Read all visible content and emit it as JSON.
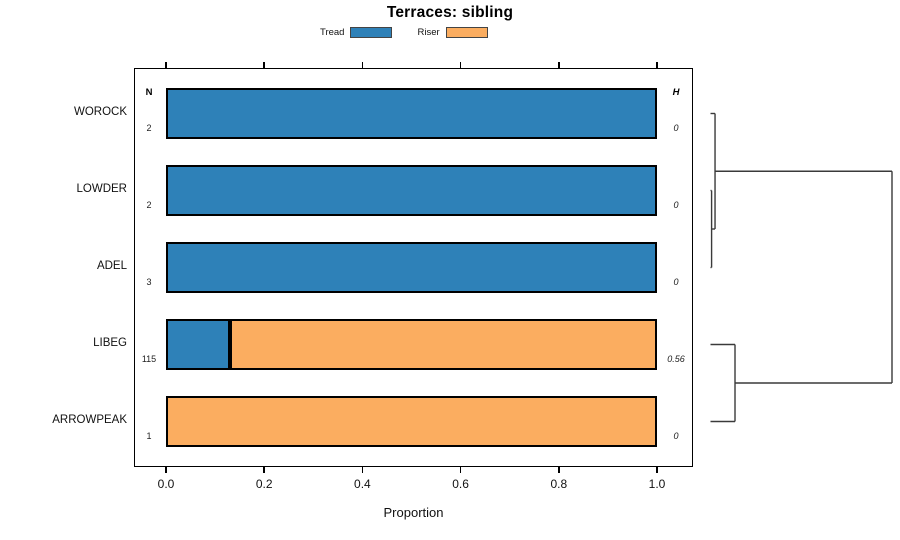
{
  "chart_data": {
    "type": "bar",
    "orientation": "horizontal-stacked",
    "title": "Terraces: sibling",
    "xlabel": "Proportion",
    "xlim": [
      0,
      1
    ],
    "x_ticks": [
      "0.0",
      "0.2",
      "0.4",
      "0.6",
      "0.8",
      "1.0"
    ],
    "grid": false,
    "legend_position": "top",
    "categories": [
      "WOROCK",
      "LOWDER",
      "ADEL",
      "LIBEG",
      "ARROWPEAK"
    ],
    "series": [
      {
        "name": "Tread",
        "color": "#2E81B8",
        "values": [
          1,
          1,
          1,
          0.13,
          0
        ]
      },
      {
        "name": "Riser",
        "color": "#FBAD60",
        "values": [
          0,
          0,
          0,
          0.87,
          1
        ]
      }
    ],
    "columns": {
      "n_header": "N",
      "h_header": "H",
      "n_values": [
        "2",
        "2",
        "3",
        "115",
        "1"
      ],
      "h_values": [
        "0",
        "0",
        "0",
        "0.56",
        "0"
      ]
    },
    "legend": {
      "entries": [
        {
          "label": "Tread",
          "color": "#2E81B8"
        },
        {
          "label": "Riser",
          "color": "#FBAD60"
        }
      ]
    },
    "dendrogram": {
      "line_color": "#3a3a3a",
      "merges": [
        {
          "a": "LOWDER",
          "b": "ADEL",
          "height": 0.006
        },
        {
          "a": "WOROCK",
          "b": "m0",
          "height": 0.025
        },
        {
          "a": "LIBEG",
          "b": "ARROWPEAK",
          "height": 0.135
        },
        {
          "a": "m1",
          "b": "m2",
          "height": 1.0
        }
      ]
    }
  }
}
